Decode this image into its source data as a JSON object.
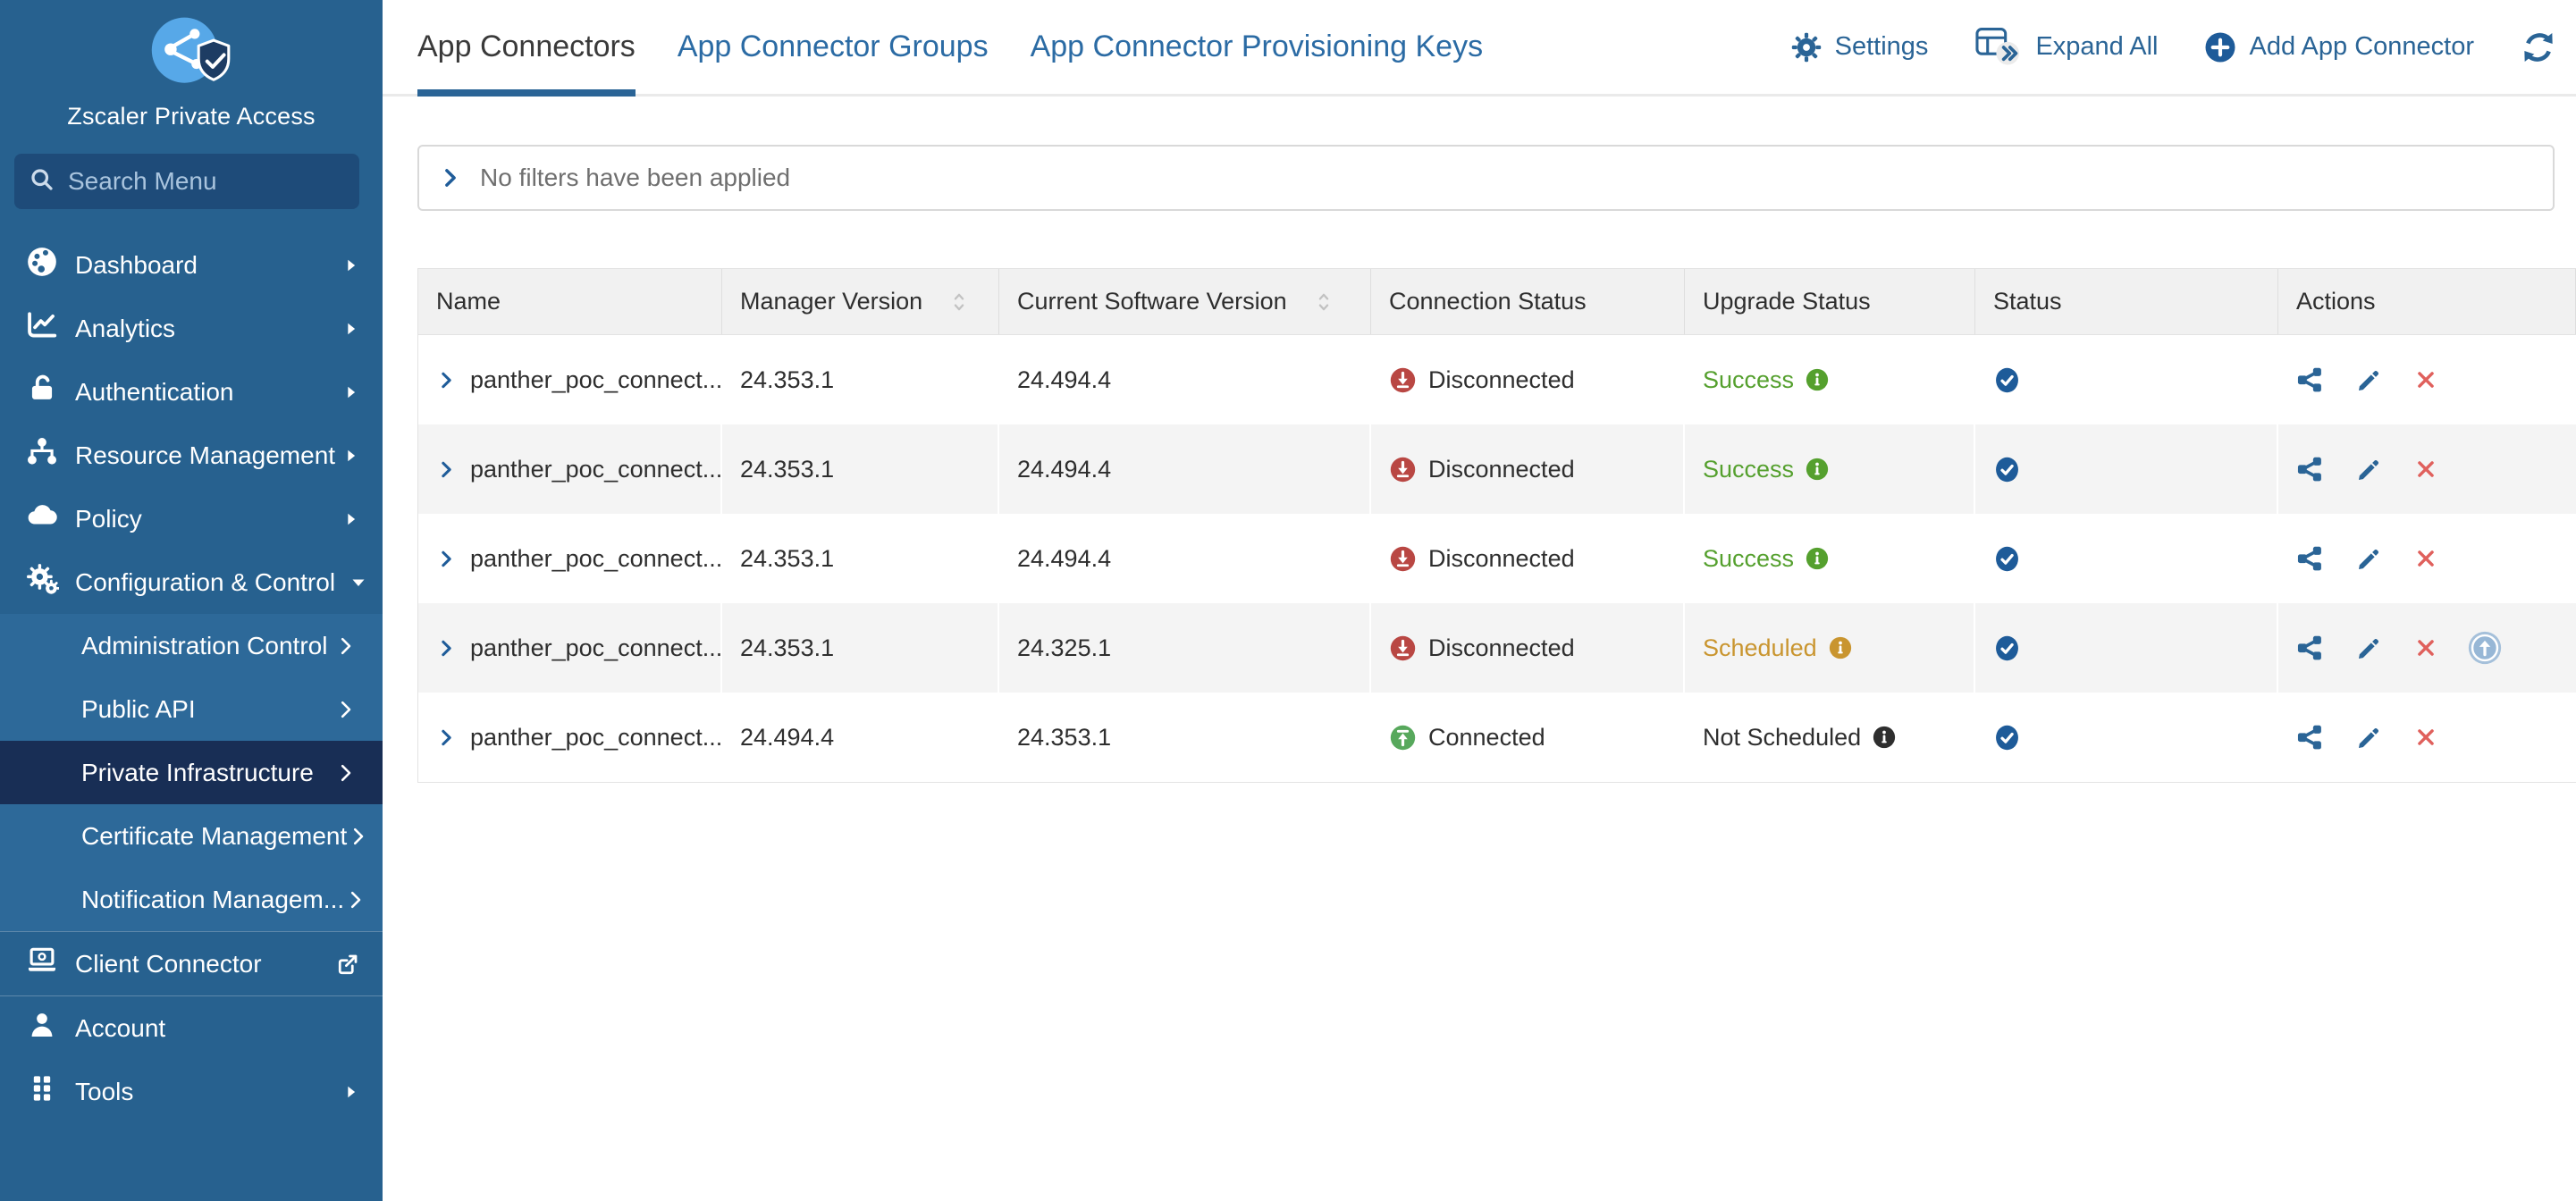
{
  "app_title": "Zscaler Private Access",
  "sidebar": {
    "search": {
      "placeholder": "Search Menu",
      "icon": "search-icon"
    },
    "items": [
      {
        "label": "Dashboard",
        "icon": "dashboard-icon",
        "arrow": "triangle-right-icon"
      },
      {
        "label": "Analytics",
        "icon": "analytics-icon",
        "arrow": "triangle-right-icon"
      },
      {
        "label": "Authentication",
        "icon": "unlock-icon",
        "arrow": "triangle-right-icon"
      },
      {
        "label": "Resource Management",
        "icon": "sitemap-icon",
        "arrow": "triangle-right-icon"
      },
      {
        "label": "Policy",
        "icon": "cloud-icon",
        "arrow": "triangle-right-icon"
      },
      {
        "label": "Configuration & Control",
        "icon": "gears-icon",
        "arrow": "caret-down-icon",
        "expanded": true
      }
    ],
    "submenu": [
      {
        "label": "Administration Control"
      },
      {
        "label": "Public API"
      },
      {
        "label": "Private Infrastructure",
        "selected": true
      },
      {
        "label": "Certificate Management"
      },
      {
        "label": "Notification Managem..."
      }
    ],
    "bottom_items": [
      {
        "label": "Client Connector",
        "icon": "laptop-icon",
        "trailing": "external-link-icon",
        "bordered": true
      },
      {
        "label": "Account",
        "icon": "person-icon"
      },
      {
        "label": "Tools",
        "icon": "grid-icon",
        "arrow": "triangle-right-icon"
      }
    ]
  },
  "tabs": [
    {
      "label": "App Connectors",
      "active": true
    },
    {
      "label": "App Connector Groups",
      "active": false
    },
    {
      "label": "App Connector Provisioning Keys",
      "active": false
    }
  ],
  "toolbar": {
    "settings_label": "Settings",
    "expand_all_label": "Expand All",
    "add_label": "Add App Connector"
  },
  "filter_bar": {
    "text": "No filters have been applied"
  },
  "table": {
    "columns": [
      {
        "label": "Name",
        "sortable": false
      },
      {
        "label": "Manager Version",
        "sortable": true
      },
      {
        "label": "Current Software Version",
        "sortable": true
      },
      {
        "label": "Connection Status",
        "sortable": false
      },
      {
        "label": "Upgrade Status",
        "sortable": false
      },
      {
        "label": "Status",
        "sortable": false
      },
      {
        "label": "Actions",
        "sortable": false
      }
    ],
    "rows": [
      {
        "name": "panther_poc_connect...",
        "manager_version": "24.353.1",
        "current_software_version": "24.494.4",
        "connection_status": "Disconnected",
        "upgrade_status": "Success",
        "status": "enabled",
        "upgrade_available": false
      },
      {
        "name": "panther_poc_connect...",
        "manager_version": "24.353.1",
        "current_software_version": "24.494.4",
        "connection_status": "Disconnected",
        "upgrade_status": "Success",
        "status": "enabled",
        "upgrade_available": false
      },
      {
        "name": "panther_poc_connect...",
        "manager_version": "24.353.1",
        "current_software_version": "24.494.4",
        "connection_status": "Disconnected",
        "upgrade_status": "Success",
        "status": "enabled",
        "upgrade_available": false
      },
      {
        "name": "panther_poc_connect...",
        "manager_version": "24.353.1",
        "current_software_version": "24.325.1",
        "connection_status": "Disconnected",
        "upgrade_status": "Scheduled",
        "status": "enabled",
        "upgrade_available": true
      },
      {
        "name": "panther_poc_connect...",
        "manager_version": "24.494.4",
        "current_software_version": "24.353.1",
        "connection_status": "Connected",
        "upgrade_status": "Not Scheduled",
        "status": "enabled",
        "upgrade_available": false
      }
    ]
  },
  "colors": {
    "sidebar_blue": "#27618f",
    "submenu_blue": "#2d6999",
    "selected_navy": "#182e55",
    "accent_blue": "#2a6496",
    "logo_light_blue": "#57a8e8",
    "success_green": "#55a02e",
    "scheduled_amber": "#c9952f",
    "neutral_black": "#2e2e2e",
    "disconnected_red": "#b94743",
    "connected_green": "#57a85c",
    "delete_red": "#e0605c",
    "status_badge_blue": "#1e5b99"
  }
}
